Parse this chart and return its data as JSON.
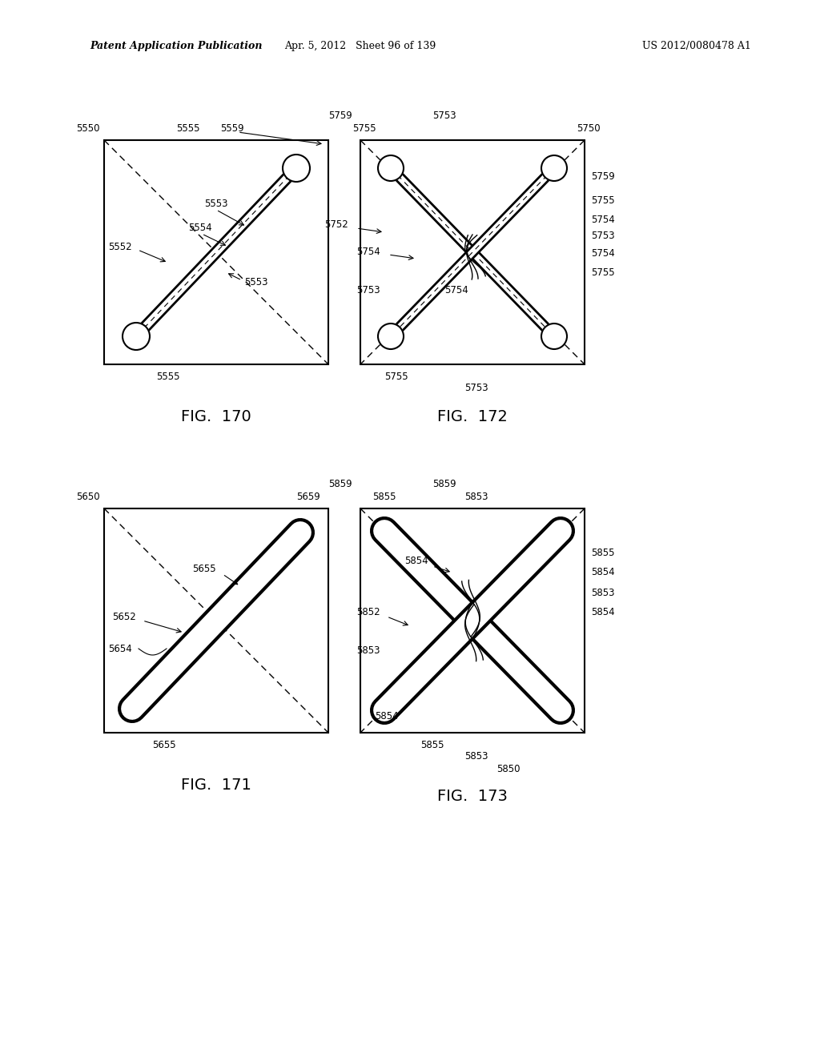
{
  "header_left": "Patent Application Publication",
  "header_center": "Apr. 5, 2012   Sheet 96 of 139",
  "header_right": "US 2012/0080478 A1",
  "fig170_title": "FIG.  170",
  "fig171_title": "FIG.  171",
  "fig172_title": "FIG.  172",
  "fig173_title": "FIG.  173",
  "bg_color": "#ffffff",
  "line_color": "#000000"
}
